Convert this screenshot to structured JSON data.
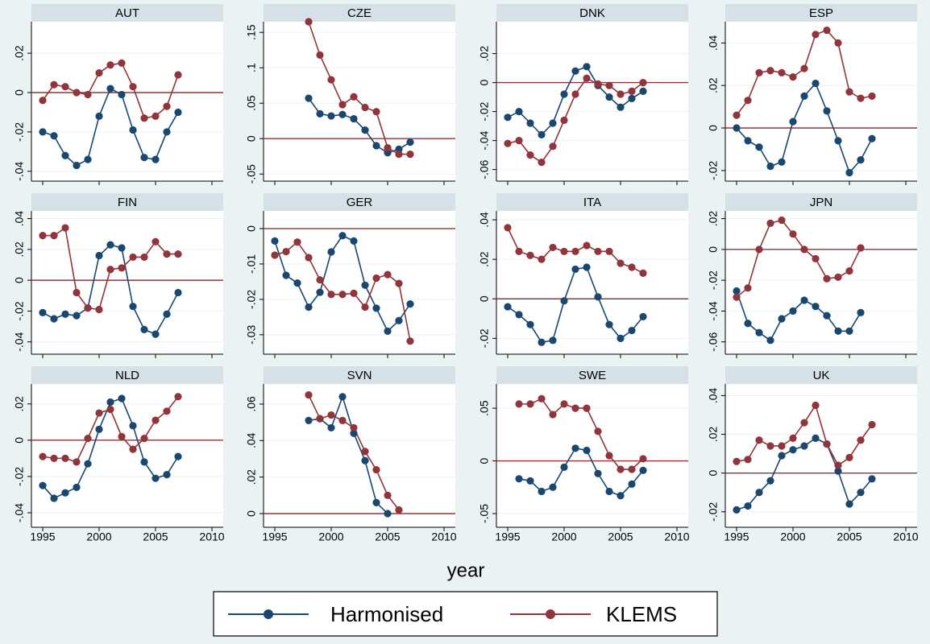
{
  "x_label": "year",
  "chart_data": [
    {
      "type": "line",
      "title": "AUT",
      "x": [
        1995,
        1996,
        1997,
        1998,
        1999,
        2000,
        2001,
        2002,
        2003,
        2004,
        2005,
        2006,
        2007
      ],
      "xlim": [
        1994,
        2011
      ],
      "xticks": [
        1995,
        2000,
        2005,
        2010
      ],
      "ylim": [
        -0.045,
        0.036
      ],
      "yticks": [
        {
          "value": -0.04,
          "label": "-.04"
        },
        {
          "value": -0.02,
          "label": "-.02"
        },
        0,
        {
          "value": 0.02,
          "label": ".02"
        }
      ],
      "yline": 0,
      "yline_color": "#90353b",
      "grid": true,
      "series": [
        {
          "name": "Harmonised",
          "color": "#1a476f",
          "values": [
            -0.02,
            -0.022,
            -0.032,
            -0.037,
            -0.034,
            -0.012,
            0.002,
            -0.001,
            -0.019,
            -0.033,
            -0.034,
            -0.02,
            -0.01
          ]
        },
        {
          "name": "KLEMS",
          "color": "#90353b",
          "values": [
            -0.004,
            0.004,
            0.003,
            0.0,
            -0.001,
            0.01,
            0.014,
            0.015,
            0.003,
            -0.013,
            -0.012,
            -0.007,
            0.009
          ]
        }
      ]
    },
    {
      "type": "line",
      "title": "CZE",
      "x": [
        1995,
        1996,
        1997,
        1998,
        1999,
        2000,
        2001,
        2002,
        2003,
        2004,
        2005,
        2006,
        2007
      ],
      "xlim": [
        1994,
        2011
      ],
      "xticks": [
        1995,
        2000,
        2005,
        2010
      ],
      "ylim": [
        -0.06,
        0.165
      ],
      "yticks": [
        {
          "value": -0.05,
          "label": "-.05"
        },
        0,
        {
          "value": 0.05,
          "label": ".05"
        },
        {
          "value": 0.1,
          "label": ".1"
        },
        {
          "value": 0.15,
          "label": ".15"
        }
      ],
      "yline": 0,
      "yline_color": "#90353b",
      "grid": true,
      "series": [
        {
          "name": "Harmonised",
          "color": "#1a476f",
          "values": [
            null,
            null,
            null,
            0.057,
            0.035,
            0.032,
            0.034,
            0.028,
            0.012,
            -0.01,
            -0.02,
            -0.015,
            -0.005
          ]
        },
        {
          "name": "KLEMS",
          "color": "#90353b",
          "values": [
            null,
            null,
            null,
            0.165,
            0.118,
            0.083,
            0.048,
            0.059,
            0.044,
            0.038,
            -0.013,
            -0.022,
            -0.022
          ]
        }
      ]
    },
    {
      "type": "line",
      "title": "DNK",
      "x": [
        1995,
        1996,
        1997,
        1998,
        1999,
        2000,
        2001,
        2002,
        2003,
        2004,
        2005,
        2006,
        2007
      ],
      "xlim": [
        1994,
        2011
      ],
      "xticks": [
        1995,
        2000,
        2005,
        2010
      ],
      "ylim": [
        -0.068,
        0.042
      ],
      "yticks": [
        {
          "value": -0.06,
          "label": "-.06"
        },
        {
          "value": -0.04,
          "label": "-.04"
        },
        {
          "value": -0.02,
          "label": "-.02"
        },
        0,
        {
          "value": 0.02,
          "label": ".02"
        }
      ],
      "yline": 0,
      "yline_color": "#90353b",
      "grid": true,
      "series": [
        {
          "name": "Harmonised",
          "color": "#1a476f",
          "values": [
            -0.024,
            -0.02,
            -0.028,
            -0.036,
            -0.028,
            -0.008,
            0.008,
            0.011,
            -0.002,
            -0.01,
            -0.017,
            -0.011,
            -0.006
          ]
        },
        {
          "name": "KLEMS",
          "color": "#90353b",
          "values": [
            -0.042,
            -0.04,
            -0.05,
            -0.055,
            -0.044,
            -0.026,
            -0.008,
            0.003,
            -0.001,
            -0.002,
            -0.008,
            -0.006,
            0.0
          ]
        }
      ]
    },
    {
      "type": "line",
      "title": "ESP",
      "x": [
        1995,
        1996,
        1997,
        1998,
        1999,
        2000,
        2001,
        2002,
        2003,
        2004,
        2005,
        2006,
        2007
      ],
      "xlim": [
        1994,
        2011
      ],
      "xticks": [
        1995,
        2000,
        2005,
        2010
      ],
      "ylim": [
        -0.025,
        0.05
      ],
      "yticks": [
        {
          "value": -0.02,
          "label": "-.02"
        },
        0,
        {
          "value": 0.02,
          "label": ".02"
        },
        {
          "value": 0.04,
          "label": ".04"
        }
      ],
      "yline": 0,
      "yline_color": "#90353b",
      "grid": true,
      "series": [
        {
          "name": "Harmonised",
          "color": "#1a476f",
          "values": [
            0.0,
            -0.006,
            -0.009,
            -0.018,
            -0.016,
            0.003,
            0.015,
            0.021,
            0.008,
            -0.006,
            -0.021,
            -0.015,
            -0.005
          ]
        },
        {
          "name": "KLEMS",
          "color": "#90353b",
          "values": [
            0.006,
            0.013,
            0.026,
            0.027,
            0.026,
            0.024,
            0.028,
            0.044,
            0.046,
            0.04,
            0.017,
            0.014,
            0.015
          ]
        }
      ]
    },
    {
      "type": "line",
      "title": "FIN",
      "x": [
        1995,
        1996,
        1997,
        1998,
        1999,
        2000,
        2001,
        2002,
        2003,
        2004,
        2005,
        2006,
        2007
      ],
      "xlim": [
        1994,
        2011
      ],
      "xticks": [
        1995,
        2000,
        2005,
        2010
      ],
      "ylim": [
        -0.048,
        0.045
      ],
      "yticks": [
        {
          "value": -0.04,
          "label": "-.04"
        },
        {
          "value": -0.02,
          "label": "-.02"
        },
        0,
        {
          "value": 0.02,
          "label": ".02"
        },
        {
          "value": 0.04,
          "label": ".04"
        }
      ],
      "yline": 0,
      "yline_color": "#90353b",
      "grid": true,
      "series": [
        {
          "name": "Harmonised",
          "color": "#1a476f",
          "values": [
            -0.021,
            -0.025,
            -0.022,
            -0.023,
            -0.018,
            0.016,
            0.023,
            0.021,
            -0.017,
            -0.032,
            -0.035,
            -0.022,
            -0.008
          ]
        },
        {
          "name": "KLEMS",
          "color": "#90353b",
          "values": [
            0.029,
            0.029,
            0.034,
            -0.008,
            -0.018,
            -0.019,
            0.007,
            0.008,
            0.015,
            0.015,
            0.025,
            0.017,
            0.017
          ]
        }
      ]
    },
    {
      "type": "line",
      "title": "GER",
      "x": [
        1995,
        1996,
        1997,
        1998,
        1999,
        2000,
        2001,
        2002,
        2003,
        2004,
        2005,
        2006,
        2007
      ],
      "xlim": [
        1994,
        2011
      ],
      "xticks": [
        1995,
        2000,
        2005,
        2010
      ],
      "ylim": [
        -0.0355,
        0.005
      ],
      "yticks": [
        {
          "value": -0.03,
          "label": "-.03"
        },
        {
          "value": -0.02,
          "label": "-.02"
        },
        {
          "value": -0.01,
          "label": "-.01"
        },
        0
      ],
      "yline": 0,
      "yline_color": "#90353b",
      "grid": true,
      "series": [
        {
          "name": "Harmonised",
          "color": "#1a476f",
          "values": [
            -0.0035,
            -0.0132,
            -0.0154,
            -0.0222,
            -0.018,
            -0.0066,
            -0.002,
            -0.0035,
            -0.016,
            -0.0225,
            -0.029,
            -0.026,
            -0.0213
          ]
        },
        {
          "name": "KLEMS",
          "color": "#90353b",
          "values": [
            -0.0075,
            -0.0065,
            -0.0038,
            -0.0082,
            -0.0145,
            -0.0186,
            -0.0186,
            -0.0183,
            -0.0222,
            -0.014,
            -0.013,
            -0.0155,
            -0.0318
          ]
        }
      ]
    },
    {
      "type": "line",
      "title": "ITA",
      "x": [
        1995,
        1996,
        1997,
        1998,
        1999,
        2000,
        2001,
        2002,
        2003,
        2004,
        2005,
        2006,
        2007
      ],
      "xlim": [
        1994,
        2011
      ],
      "xticks": [
        1995,
        2000,
        2005,
        2010
      ],
      "ylim": [
        -0.028,
        0.0445
      ],
      "yticks": [
        {
          "value": -0.02,
          "label": "-.02"
        },
        0,
        {
          "value": 0.02,
          "label": ".02"
        },
        {
          "value": 0.04,
          "label": ".04"
        }
      ],
      "yline": 0,
      "yline_color": "#90353b",
      "grid": true,
      "series": [
        {
          "name": "Harmonised",
          "color": "#1a476f",
          "values": [
            -0.004,
            -0.008,
            -0.013,
            -0.022,
            -0.021,
            -0.001,
            0.015,
            0.016,
            0.001,
            -0.013,
            -0.02,
            -0.016,
            -0.009
          ]
        },
        {
          "name": "KLEMS",
          "color": "#90353b",
          "values": [
            0.036,
            0.024,
            0.022,
            0.02,
            0.026,
            0.024,
            0.024,
            0.027,
            0.024,
            0.024,
            0.018,
            0.016,
            0.013
          ]
        }
      ]
    },
    {
      "type": "line",
      "title": "JPN",
      "x": [
        1995,
        1996,
        1997,
        1998,
        1999,
        2000,
        2001,
        2002,
        2003,
        2004,
        2005,
        2006,
        2007
      ],
      "xlim": [
        1994,
        2011
      ],
      "xticks": [
        1995,
        2000,
        2005,
        2010
      ],
      "ylim": [
        -0.068,
        0.025
      ],
      "yticks": [
        {
          "value": -0.06,
          "label": "-.06"
        },
        {
          "value": -0.04,
          "label": "-.04"
        },
        {
          "value": -0.02,
          "label": "-.02"
        },
        0,
        {
          "value": 0.02,
          "label": ".02"
        }
      ],
      "yline": 0,
      "yline_color": "#90353b",
      "grid": true,
      "series": [
        {
          "name": "Harmonised",
          "color": "#1a476f",
          "values": [
            -0.027,
            -0.048,
            -0.054,
            -0.059,
            -0.045,
            -0.04,
            -0.033,
            -0.037,
            -0.043,
            -0.053,
            -0.053,
            -0.041,
            null
          ]
        },
        {
          "name": "KLEMS",
          "color": "#90353b",
          "values": [
            -0.031,
            -0.025,
            0.0,
            0.017,
            0.019,
            0.01,
            0.0,
            -0.006,
            -0.019,
            -0.018,
            -0.014,
            0.001,
            null
          ]
        }
      ]
    },
    {
      "type": "line",
      "title": "NLD",
      "x": [
        1995,
        1996,
        1997,
        1998,
        1999,
        2000,
        2001,
        2002,
        2003,
        2004,
        2005,
        2006,
        2007
      ],
      "xlim": [
        1994,
        2011
      ],
      "xticks": [
        1995,
        2000,
        2005,
        2010
      ],
      "ylim": [
        -0.048,
        0.031
      ],
      "yticks": [
        {
          "value": -0.04,
          "label": "-.04"
        },
        {
          "value": -0.02,
          "label": "-.02"
        },
        0,
        {
          "value": 0.02,
          "label": ".02"
        }
      ],
      "yline": 0,
      "yline_color": "#90353b",
      "grid": true,
      "series": [
        {
          "name": "Harmonised",
          "color": "#1a476f",
          "values": [
            -0.025,
            -0.032,
            -0.029,
            -0.026,
            -0.013,
            0.006,
            0.021,
            0.023,
            0.008,
            -0.012,
            -0.021,
            -0.019,
            -0.009
          ]
        },
        {
          "name": "KLEMS",
          "color": "#90353b",
          "values": [
            -0.009,
            -0.01,
            -0.01,
            -0.012,
            0.001,
            0.015,
            0.017,
            0.002,
            -0.005,
            0.001,
            0.011,
            0.016,
            0.024
          ]
        }
      ]
    },
    {
      "type": "line",
      "title": "SVN",
      "x": [
        1995,
        1996,
        1997,
        1998,
        1999,
        2000,
        2001,
        2002,
        2003,
        2004,
        2005,
        2006,
        2007
      ],
      "xlim": [
        1994,
        2011
      ],
      "xticks": [
        1995,
        2000,
        2005,
        2010
      ],
      "ylim": [
        -0.0075,
        0.071
      ],
      "yticks": [
        0,
        {
          "value": 0.02,
          "label": ".02"
        },
        {
          "value": 0.04,
          "label": ".04"
        },
        {
          "value": 0.06,
          "label": ".06"
        }
      ],
      "yline": 0,
      "yline_color": "#90353b",
      "grid": true,
      "series": [
        {
          "name": "Harmonised",
          "color": "#1a476f",
          "values": [
            null,
            null,
            null,
            0.051,
            0.052,
            0.047,
            0.064,
            0.044,
            0.029,
            0.006,
            0.0,
            null,
            null
          ]
        },
        {
          "name": "KLEMS",
          "color": "#90353b",
          "values": [
            null,
            null,
            null,
            0.065,
            0.052,
            0.054,
            0.051,
            0.047,
            0.034,
            0.024,
            0.01,
            0.002,
            null
          ]
        }
      ]
    },
    {
      "type": "line",
      "title": "SWE",
      "x": [
        1995,
        1996,
        1997,
        1998,
        1999,
        2000,
        2001,
        2002,
        2003,
        2004,
        2005,
        2006,
        2007
      ],
      "xlim": [
        1994,
        2011
      ],
      "xticks": [
        1995,
        2000,
        2005,
        2010
      ],
      "ylim": [
        -0.063,
        0.073
      ],
      "yticks": [
        {
          "value": -0.05,
          "label": "-.05"
        },
        0,
        {
          "value": 0.05,
          "label": ".05"
        }
      ],
      "yline": 0,
      "yline_color": "#90353b",
      "grid": true,
      "series": [
        {
          "name": "Harmonised",
          "color": "#1a476f",
          "values": [
            null,
            -0.017,
            -0.019,
            -0.029,
            -0.025,
            -0.006,
            0.012,
            0.01,
            -0.012,
            -0.029,
            -0.033,
            -0.022,
            -0.009
          ]
        },
        {
          "name": "KLEMS",
          "color": "#90353b",
          "values": [
            null,
            0.054,
            0.054,
            0.059,
            0.044,
            0.054,
            0.05,
            0.05,
            0.028,
            0.005,
            -0.008,
            -0.008,
            0.002
          ]
        }
      ]
    },
    {
      "type": "line",
      "title": "UK",
      "x": [
        1995,
        1996,
        1997,
        1998,
        1999,
        2000,
        2001,
        2002,
        2003,
        2004,
        2005,
        2006,
        2007
      ],
      "xlim": [
        1994,
        2011
      ],
      "xticks": [
        1995,
        2000,
        2005,
        2010
      ],
      "ylim": [
        -0.028,
        0.046
      ],
      "yticks": [
        {
          "value": -0.02,
          "label": "-.02"
        },
        0,
        {
          "value": 0.02,
          "label": ".02"
        },
        {
          "value": 0.04,
          "label": ".04"
        }
      ],
      "yline": 0,
      "yline_color": "#90353b",
      "grid": true,
      "series": [
        {
          "name": "Harmonised",
          "color": "#1a476f",
          "values": [
            -0.019,
            -0.017,
            -0.01,
            -0.004,
            0.009,
            0.012,
            0.014,
            0.018,
            0.015,
            0.001,
            -0.016,
            -0.01,
            -0.003
          ]
        },
        {
          "name": "KLEMS",
          "color": "#90353b",
          "values": [
            0.006,
            0.007,
            0.017,
            0.014,
            0.014,
            0.018,
            0.026,
            0.035,
            0.015,
            0.004,
            0.008,
            0.017,
            0.025
          ]
        }
      ]
    }
  ]
}
